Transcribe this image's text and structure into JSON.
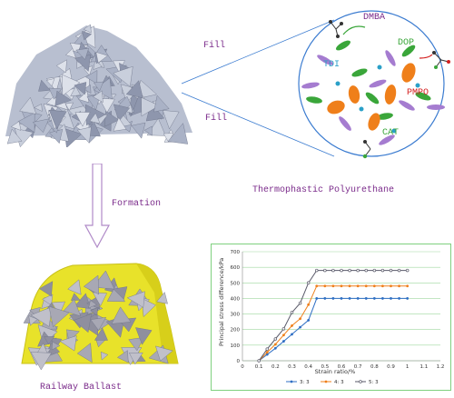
{
  "labels": {
    "fill_top": "Fill",
    "fill_bottom": "Fill",
    "formation": "Formation",
    "tpu": "Thermophastic Polyurethane",
    "railway": "Railway Ballast",
    "dmba": "DMBA",
    "dop": "DOP",
    "tdi": "TDI",
    "pmpo": "PMPO",
    "cat": "CAT"
  },
  "colors": {
    "purple": "#7a2a8a",
    "green": "#3aa63a",
    "red": "#d42020",
    "teal": "#2aa0c8",
    "ballast_yellow": "#e8e22a",
    "grid": "#9fd89f"
  },
  "chart_data": {
    "type": "line",
    "xlabel": "Strain ratio/%",
    "ylabel": "Principal stress difference/kPa",
    "xlim": [
      0,
      1.2
    ],
    "ylim": [
      0,
      700
    ],
    "x_ticks": [
      "0",
      "0.1",
      "0.2",
      "0.3",
      "0.4",
      "0.5",
      "0.6",
      "0.7",
      "0.8",
      "0.9",
      "1",
      "1.1",
      "1.2"
    ],
    "y_ticks": [
      "0",
      "100",
      "200",
      "300",
      "400",
      "500",
      "600",
      "700"
    ],
    "grid": true,
    "legend_position": "bottom",
    "x": [
      0.1,
      0.15,
      0.2,
      0.25,
      0.3,
      0.35,
      0.4,
      0.45,
      0.5,
      0.55,
      0.6,
      0.65,
      0.7,
      0.75,
      0.8,
      0.85,
      0.9,
      0.95,
      1.0
    ],
    "series": [
      {
        "name": "3: 3",
        "color": "#2f6fc4",
        "values": [
          0,
          40,
          80,
          125,
          170,
          215,
          260,
          400,
          400,
          400,
          400,
          400,
          400,
          400,
          400,
          400,
          400,
          400,
          400
        ]
      },
      {
        "name": "4: 3",
        "color": "#ef7f1a",
        "values": [
          0,
          55,
          105,
          165,
          225,
          270,
          360,
          480,
          480,
          480,
          480,
          480,
          480,
          480,
          480,
          480,
          480,
          480,
          480
        ]
      },
      {
        "name": "5: 3",
        "color": "#5a5a6a",
        "values": [
          0,
          75,
          140,
          205,
          310,
          370,
          500,
          580,
          580,
          580,
          580,
          580,
          580,
          580,
          580,
          580,
          580,
          580,
          580
        ]
      }
    ]
  }
}
